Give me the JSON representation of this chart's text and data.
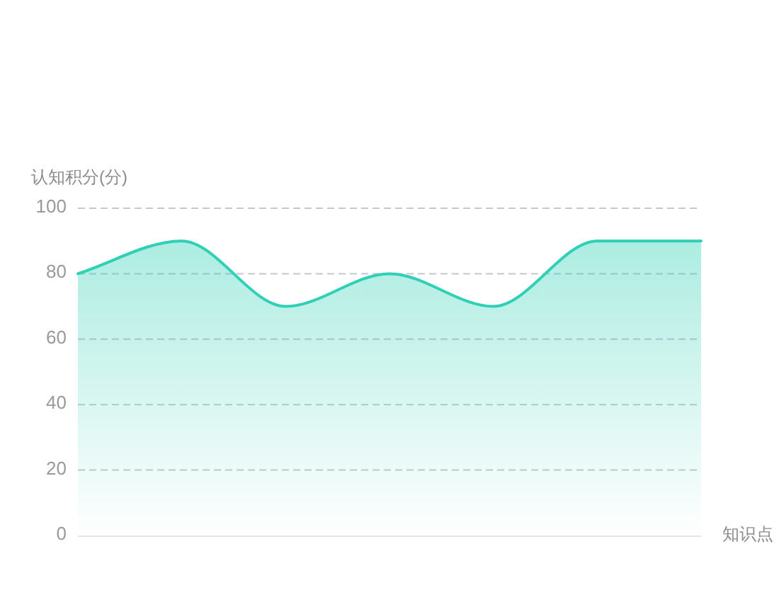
{
  "chart_data": {
    "type": "area",
    "xlabel": "知识点",
    "ylabel": "认知积分(分)",
    "categories": [
      null,
      null,
      null,
      null,
      null,
      null,
      null
    ],
    "series": [
      {
        "color": "#2fd0b5",
        "values": [
          80,
          90,
          70,
          80,
          70,
          90,
          90
        ]
      }
    ],
    "ylim": [
      0,
      100
    ],
    "yticks": [
      0,
      20,
      40,
      60,
      80,
      100
    ],
    "grid": "y",
    "tick_labels": "y"
  }
}
